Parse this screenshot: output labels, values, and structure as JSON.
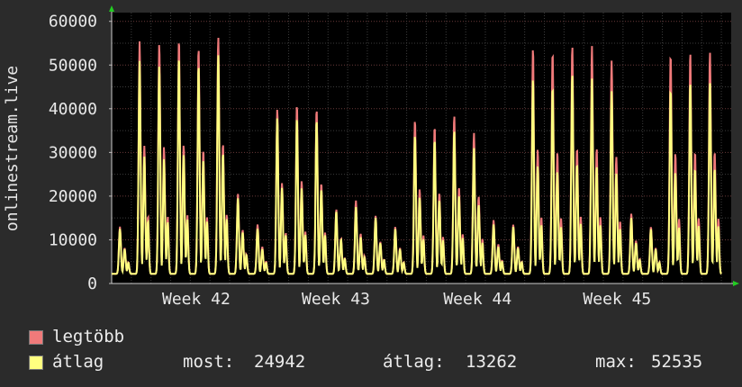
{
  "chart_data": {
    "type": "line",
    "ylabel": "onlinestream.live",
    "ylim": [
      0,
      62000
    ],
    "y_ticks": [
      0,
      10000,
      20000,
      30000,
      40000,
      50000,
      60000
    ],
    "y_tick_labels": [
      "0",
      "10000",
      "20000",
      "30000",
      "40000",
      "50000",
      "60000"
    ],
    "x_range_days": [
      0,
      31.5
    ],
    "x_ticks": [
      {
        "label": "Week 42",
        "day": 4.3
      },
      {
        "label": "Week 43",
        "day": 11.4
      },
      {
        "label": "Week 44",
        "day": 18.6
      },
      {
        "label": "Week 45",
        "day": 25.7
      }
    ],
    "grid": true,
    "legend_position": "bottom-left",
    "series": [
      {
        "name": "legtöbb",
        "color": "#f07a7a",
        "daily_peaks": [
          13000,
          55500,
          55000,
          56000,
          54000,
          56500,
          20500,
          13500,
          40000,
          41000,
          40000,
          17000,
          19000,
          15500,
          13000,
          37500,
          36000,
          38500,
          34500,
          14500,
          13500,
          54000,
          53000,
          54500,
          54500,
          51000,
          16000,
          13000,
          52500,
          53000
        ]
      },
      {
        "name": "átlag",
        "color": "#ffff80",
        "daily_peaks": [
          12500,
          51000,
          50000,
          52000,
          50000,
          52500,
          19500,
          12500,
          38000,
          38000,
          37500,
          16500,
          17500,
          15000,
          12500,
          34000,
          33000,
          35000,
          31000,
          13500,
          13000,
          47000,
          45000,
          48000,
          47000,
          44000,
          15000,
          12500,
          44500,
          46000
        ]
      }
    ],
    "stats": {
      "most_label": "most:",
      "most_value": "24942",
      "atlag_label": "átlag:",
      "atlag_value": "13262",
      "max_label": "max:",
      "max_value": "52535"
    }
  }
}
